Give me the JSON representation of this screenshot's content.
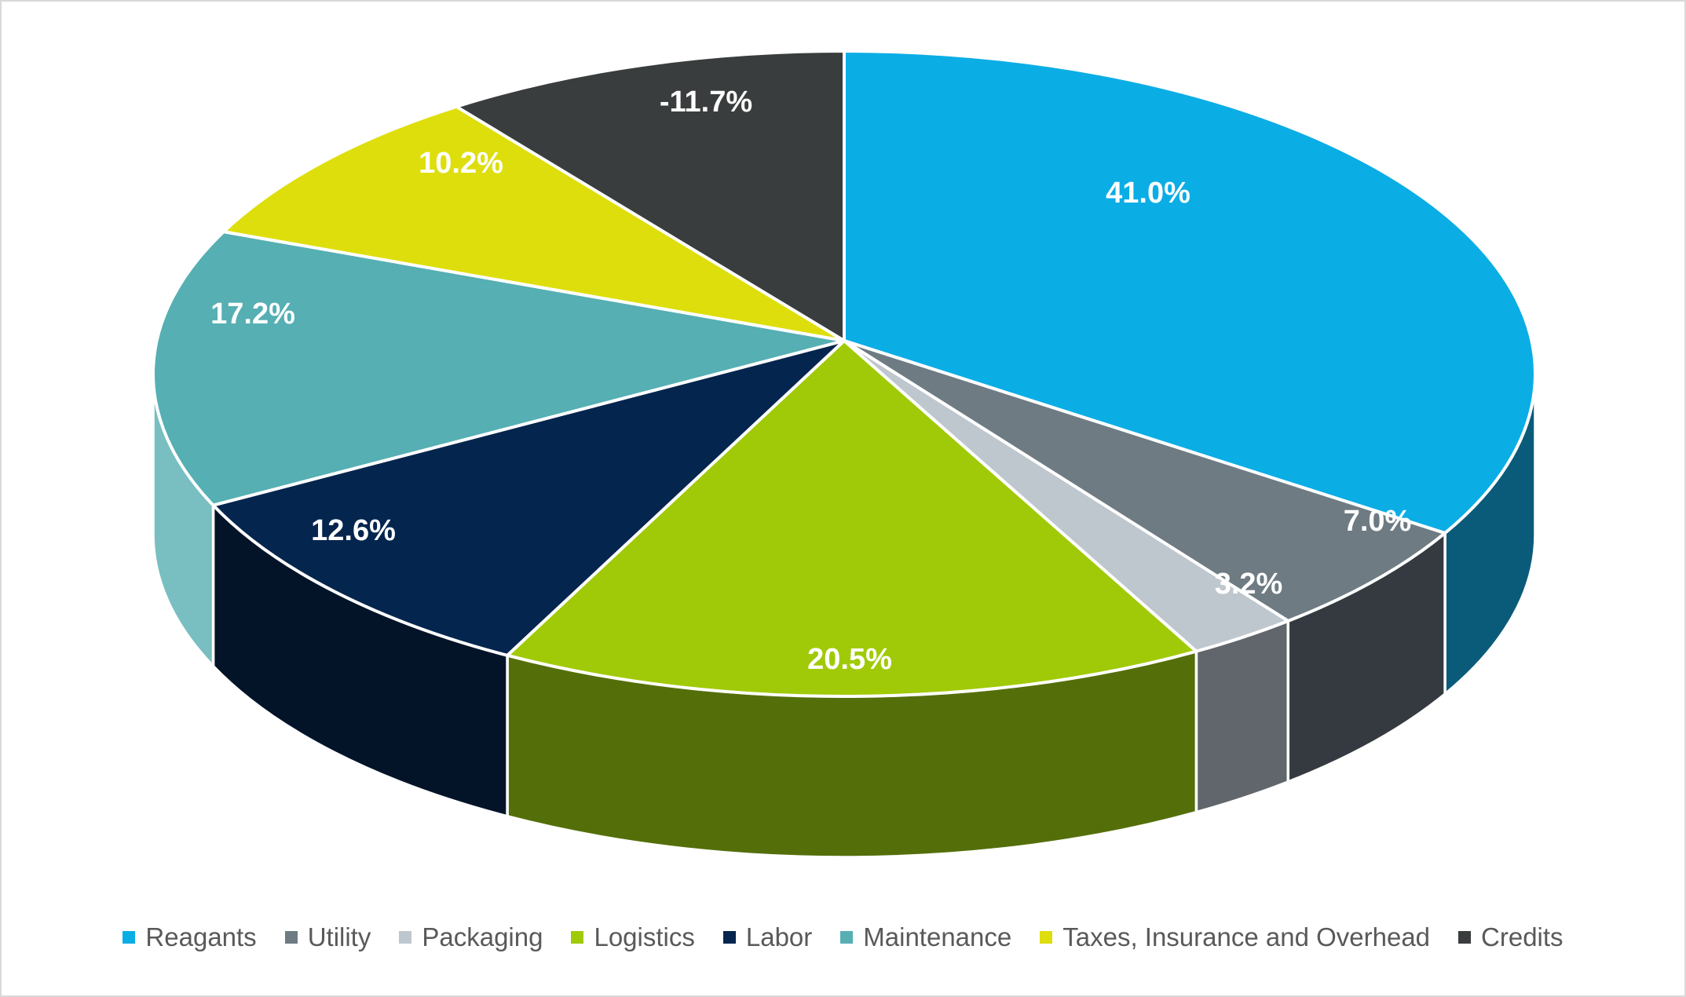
{
  "chart_data": {
    "type": "pie",
    "style": "3d-pie",
    "title": "",
    "unit": "%",
    "start_angle_deg": 0,
    "direction": "clockwise",
    "legend_position": "bottom",
    "background_color": "#ffffff",
    "border_color": "#d9d9d9",
    "slice_border_color": "#ffffff",
    "legend_text_color": "#595959",
    "label_text_color": "#ffffff",
    "note": "slice angles are proportional to absolute values; Credits is a negative value",
    "slices": [
      {
        "name": "Reagants",
        "value": 41.0,
        "display": "41.0%",
        "color": "#0badе5",
        "wall_color": "#0a5b7a"
      },
      {
        "name": "Utility",
        "value": 7.0,
        "display": "7.0%",
        "color": "#6e7b83",
        "wall_color": "#343a40"
      },
      {
        "name": "Packaging",
        "value": 3.2,
        "display": "3.2%",
        "color": "#bfc7ce",
        "wall_color": "#60666c"
      },
      {
        "name": "Logistics",
        "value": 20.5,
        "display": "20.5%",
        "color": "#a0ca08",
        "wall_color": "#546f0a"
      },
      {
        "name": "Labor",
        "value": 12.6,
        "display": "12.6%",
        "color": "#04254e",
        "wall_color": "#031429"
      },
      {
        "name": "Maintenance",
        "value": 17.2,
        "display": "17.2%",
        "color": "#55afb3",
        "wall_color": "#79bec1"
      },
      {
        "name": "Taxes, Insurance and Overhead",
        "value": 10.2,
        "display": "10.2%",
        "color": "#dede0c",
        "wall_color": null
      },
      {
        "name": "Credits",
        "value": -11.7,
        "display": "-11.7%",
        "color": "#3a3d3d",
        "wall_color": null
      }
    ]
  }
}
